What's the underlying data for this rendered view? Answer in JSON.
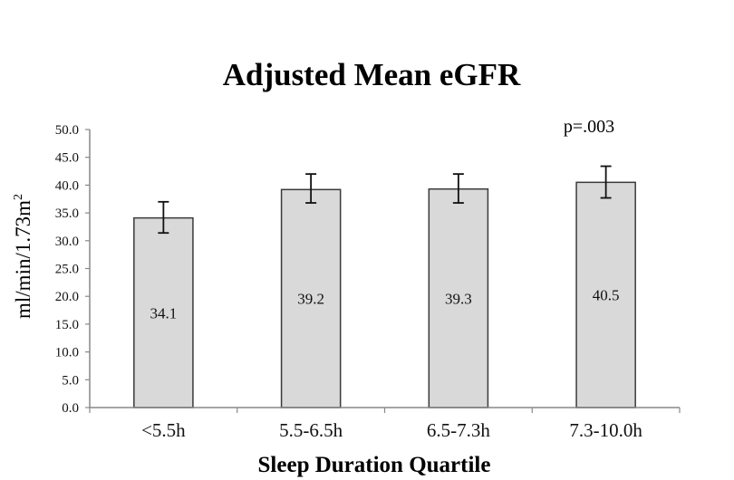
{
  "chart_data": {
    "type": "bar",
    "title": "Adjusted Mean eGFR",
    "xlabel": "Sleep Duration Quartile",
    "ylabel": "ml/min/1.73m²",
    "ylabel_main": "ml/min/1.73m",
    "ylabel_sup": "2",
    "ylim": [
      0,
      50
    ],
    "yticks": [
      "0.0",
      "5.0",
      "10.0",
      "15.0",
      "20.0",
      "25.0",
      "30.0",
      "35.0",
      "40.0",
      "45.0",
      "50.0"
    ],
    "categories": [
      "<5.5h",
      "5.5-6.5h",
      "6.5-7.3h",
      "7.3-10.0h"
    ],
    "values": [
      34.1,
      39.2,
      39.3,
      40.5
    ],
    "value_labels": [
      "34.1",
      "39.2",
      "39.3",
      "40.5"
    ],
    "error_low": [
      31.4,
      36.8,
      36.8,
      37.7
    ],
    "error_high": [
      37.0,
      42.0,
      42.0,
      43.4
    ],
    "annotation": "p=.003",
    "grid": false,
    "legend": "none",
    "colors": {
      "bar_fill": "#d9d9d9",
      "bar_stroke": "#3a3a3a",
      "axis": "#888888",
      "text": "#111111"
    }
  }
}
